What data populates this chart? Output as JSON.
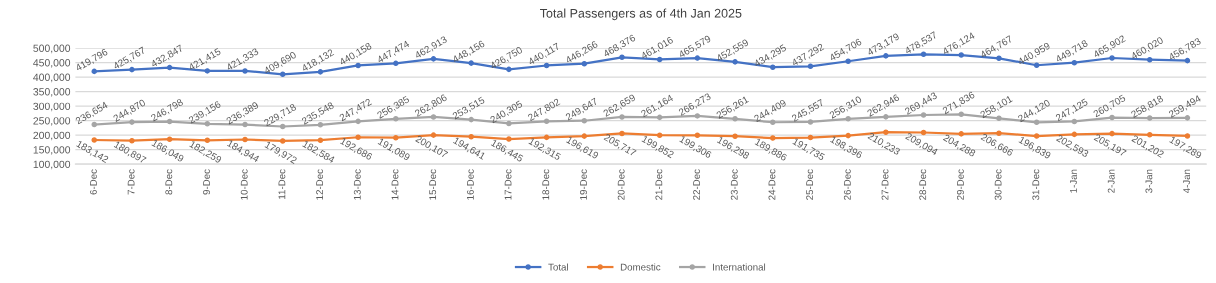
{
  "chart_data": {
    "type": "line",
    "title": "Total Passengers as of 4th Jan 2025",
    "categories": [
      "6-Dec",
      "7-Dec",
      "8-Dec",
      "9-Dec",
      "10-Dec",
      "11-Dec",
      "12-Dec",
      "13-Dec",
      "14-Dec",
      "15-Dec",
      "16-Dec",
      "17-Dec",
      "18-Dec",
      "19-Dec",
      "20-Dec",
      "21-Dec",
      "22-Dec",
      "23-Dec",
      "24-Dec",
      "25-Dec",
      "26-Dec",
      "27-Dec",
      "28-Dec",
      "29-Dec",
      "30-Dec",
      "31-Dec",
      "1-Jan",
      "2-Jan",
      "3-Jan",
      "4-Jan"
    ],
    "series": [
      {
        "name": "Total",
        "color": "#4472c4",
        "values": [
          419796,
          425767,
          432847,
          421415,
          421333,
          409690,
          418132,
          440158,
          447474,
          462913,
          448156,
          426750,
          440117,
          446266,
          468376,
          461016,
          465579,
          452559,
          434295,
          437292,
          454706,
          473179,
          478537,
          476124,
          464767,
          440959,
          449718,
          465902,
          460020,
          456783
        ],
        "value_labels": [
          "419,796",
          "425,767",
          "432,847",
          "421,415",
          "421,333",
          "409,690",
          "418,132",
          "440,158",
          "447,474",
          "462,913",
          "448,156",
          "426,750",
          "440,117",
          "446,266",
          "468,376",
          "461,016",
          "465,579",
          "452,559",
          "434,295",
          "437,292",
          "454,706",
          "473,179",
          "478,537",
          "476,124",
          "464,767",
          "440,959",
          "449,718",
          "465,902",
          "460,020",
          "456,783"
        ]
      },
      {
        "name": "Domestic",
        "color": "#ed7d31",
        "values": [
          183142,
          180897,
          186049,
          182259,
          184944,
          179972,
          182584,
          192686,
          191089,
          200107,
          194641,
          186445,
          192315,
          196619,
          205717,
          199852,
          199306,
          196298,
          189886,
          191735,
          198396,
          210233,
          209094,
          204288,
          206666,
          196839,
          202593,
          205197,
          201202,
          197289
        ],
        "value_labels": [
          "183,142",
          "180,897",
          "186,049",
          "182,259",
          "184,944",
          "179,972",
          "182,584",
          "192,686",
          "191,089",
          "200,107",
          "194,641",
          "186,445",
          "192,315",
          "196,619",
          "205,717",
          "199,852",
          "199,306",
          "196,298",
          "189,886",
          "191,735",
          "198,396",
          "210,233",
          "209,094",
          "204,288",
          "206,666",
          "196,839",
          "202,593",
          "205,197",
          "201,202",
          "197,289"
        ]
      },
      {
        "name": "International",
        "color": "#a5a5a5",
        "values": [
          236654,
          244870,
          246798,
          239156,
          236389,
          229718,
          235548,
          247472,
          256385,
          262806,
          253515,
          240305,
          247802,
          249647,
          262659,
          261164,
          266273,
          256261,
          244409,
          245557,
          256310,
          262946,
          269443,
          271836,
          258101,
          244120,
          247125,
          260705,
          258818,
          259494
        ],
        "value_labels": [
          "236,654",
          "244,870",
          "246,798",
          "239,156",
          "236,389",
          "229,718",
          "235,548",
          "247,472",
          "256,385",
          "262,806",
          "253,515",
          "240,305",
          "247,802",
          "249,647",
          "262,659",
          "261,164",
          "266,273",
          "256,261",
          "244,409",
          "245,557",
          "256,310",
          "262,946",
          "269,443",
          "271,836",
          "258,101",
          "244,120",
          "247,125",
          "260,705",
          "258,818",
          "259,494"
        ]
      }
    ],
    "ylim": [
      100000,
      500000
    ],
    "yticks": [
      {
        "value": 100000,
        "label": "100,000"
      },
      {
        "value": 150000,
        "label": "150,000"
      },
      {
        "value": 200000,
        "label": "200,000"
      },
      {
        "value": 250000,
        "label": "250,000"
      },
      {
        "value": 300000,
        "label": "300,000"
      },
      {
        "value": 350000,
        "label": "350,000"
      },
      {
        "value": 400000,
        "label": "400,000"
      },
      {
        "value": 450000,
        "label": "450,000"
      },
      {
        "value": 500000,
        "label": "500,000"
      }
    ],
    "grid": "y",
    "legend": "bottom",
    "marker": "circle",
    "line_style": "solid"
  }
}
